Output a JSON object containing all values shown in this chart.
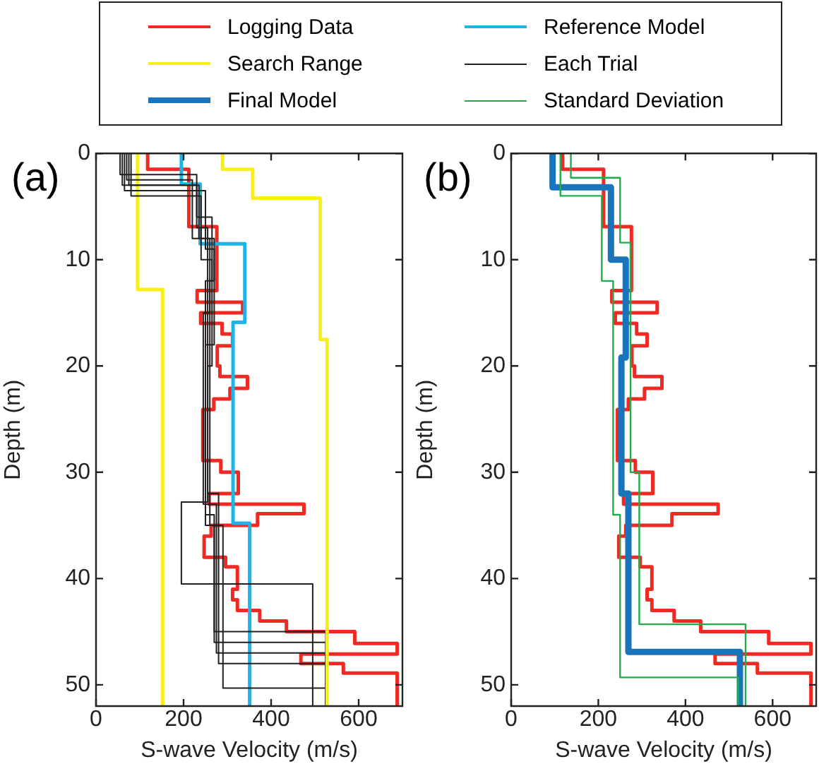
{
  "chart_data": [
    {
      "type": "line",
      "xlabel": "S-wave Velocity (m/s)",
      "ylabel": "Depth (m)",
      "annotations": [
        "(a)"
      ],
      "xlim": [
        0,
        700
      ],
      "xticks": [
        0,
        200,
        400,
        600
      ],
      "ylim": [
        52,
        0
      ],
      "yticks": [
        0,
        10,
        20,
        30,
        40,
        50
      ],
      "grid": false,
      "legend": "top",
      "marker": "none",
      "line_style": "solid",
      "series": [
        {
          "name": "Logging Data",
          "color": "#ee2a24",
          "x": [
            118,
            118,
            212,
            212,
            276,
            276,
            231,
            231,
            335,
            335,
            239,
            239,
            288,
            288,
            312,
            312,
            277,
            277,
            283,
            283,
            346,
            346,
            306,
            306,
            269,
            269,
            244,
            244,
            285,
            285,
            325,
            325,
            258,
            258,
            475,
            475,
            369,
            369,
            263,
            263,
            247,
            247,
            296,
            296,
            323,
            323,
            312,
            312,
            323,
            323,
            374,
            374,
            435,
            435,
            591,
            591,
            688,
            688,
            468,
            468,
            565,
            565,
            688,
            688
          ],
          "values": [
            0,
            1.5,
            1.5,
            6.9,
            6.9,
            12.9,
            12.9,
            14,
            14,
            15,
            15,
            16,
            16,
            17,
            17,
            18.1,
            18.1,
            20,
            20,
            21,
            21,
            22.1,
            22.1,
            23.1,
            23.1,
            24.1,
            24.1,
            28.9,
            28.9,
            30,
            30,
            32,
            32,
            33,
            33,
            33.9,
            33.9,
            35,
            35,
            36,
            36,
            38,
            38,
            38.9,
            38.9,
            41,
            41,
            42,
            42,
            43,
            43,
            44,
            44,
            45,
            45,
            46.1,
            46.1,
            47.1,
            47.1,
            48,
            48,
            48.9,
            48.9,
            52
          ]
        },
        {
          "name": "Reference Model",
          "color": "#1fb4e8",
          "x": [
            195,
            195,
            238,
            238,
            340,
            340,
            313,
            313,
            351,
            351
          ],
          "values": [
            0,
            2.9,
            2.9,
            8.5,
            8.5,
            15.9,
            15.9,
            34.8,
            34.8,
            52
          ]
        },
        {
          "name": "Search Range",
          "color": "#f7ee1a",
          "x": [
            95,
            95,
            152,
            152
          ],
          "values": [
            0,
            12.8,
            12.8,
            52
          ]
        },
        {
          "name": "Each Trial",
          "color": "#231f20",
          "x": [
            60,
            60,
            230,
            230,
            255,
            255,
            250,
            250,
            270,
            270,
            525,
            525
          ],
          "values": [
            0,
            3,
            3,
            7,
            7,
            12,
            12,
            35,
            35,
            45,
            45,
            52
          ]
        },
        {
          "color": "#231f20",
          "x": [
            70,
            70,
            220,
            220,
            260,
            260,
            245,
            245,
            275,
            275,
            525,
            525
          ],
          "values": [
            0,
            2.5,
            2.5,
            8,
            8,
            15,
            15,
            33,
            33,
            47,
            47,
            52
          ]
        },
        {
          "color": "#231f20",
          "x": [
            80,
            80,
            240,
            240,
            265,
            265,
            255,
            255,
            280,
            280,
            525,
            525
          ],
          "values": [
            0,
            4,
            4,
            10,
            10,
            20,
            20,
            32,
            32,
            48,
            48,
            52
          ]
        },
        {
          "color": "#231f20",
          "x": [
            65,
            65,
            250,
            250,
            270,
            270,
            250,
            250,
            270,
            270,
            525,
            525
          ],
          "values": [
            0,
            3.5,
            3.5,
            9,
            9,
            18,
            18,
            34,
            34,
            46,
            46,
            52
          ]
        },
        {
          "color": "#231f20",
          "x": [
            75,
            75,
            235,
            235,
            270,
            270,
            255,
            255,
            195,
            195,
            495,
            495
          ],
          "values": [
            0,
            3,
            3,
            8,
            8,
            12,
            12,
            32.8,
            32.8,
            40.5,
            40.5,
            52
          ]
        },
        {
          "color": "#231f20",
          "x": [
            55,
            55,
            230,
            230,
            265,
            265,
            260,
            260,
            290,
            290,
            525,
            525
          ],
          "values": [
            0,
            2,
            2,
            6,
            6,
            12,
            12,
            35,
            35,
            50.3,
            50.3,
            52
          ]
        },
        {
          "color": "#f7ee1a",
          "x": [
            289,
            289,
            358,
            358,
            512,
            512,
            528,
            528
          ],
          "values": [
            0,
            1.5,
            1.5,
            4.2,
            4.2,
            17.5,
            17.5,
            52
          ]
        }
      ]
    },
    {
      "type": "line",
      "xlabel": "S-wave Velocity (m/s)",
      "ylabel": "Depth (m)",
      "annotations": [
        "(b)"
      ],
      "xlim": [
        0,
        700
      ],
      "xticks": [
        0,
        200,
        400,
        600
      ],
      "ylim": [
        52,
        0
      ],
      "yticks": [
        0,
        10,
        20,
        30,
        40,
        50
      ],
      "grid": false,
      "legend": "top",
      "marker": "none",
      "line_style": "solid",
      "series": [
        {
          "color": "#ee2a24",
          "x": [
            118,
            118,
            212,
            212,
            276,
            276,
            231,
            231,
            335,
            335,
            239,
            239,
            288,
            288,
            312,
            312,
            277,
            277,
            283,
            283,
            346,
            346,
            306,
            306,
            269,
            269,
            244,
            244,
            285,
            285,
            325,
            325,
            258,
            258,
            475,
            475,
            369,
            369,
            263,
            263,
            247,
            247,
            296,
            296,
            323,
            323,
            312,
            312,
            323,
            323,
            374,
            374,
            435,
            435,
            591,
            591,
            688,
            688,
            468,
            468,
            565,
            565,
            688,
            688
          ],
          "values": [
            0,
            1.5,
            1.5,
            6.9,
            6.9,
            12.9,
            12.9,
            14,
            14,
            15,
            15,
            16,
            16,
            17,
            17,
            18.1,
            18.1,
            20,
            20,
            21,
            21,
            22.1,
            22.1,
            23.1,
            23.1,
            24.1,
            24.1,
            28.9,
            28.9,
            30,
            30,
            32,
            32,
            33,
            33,
            33.9,
            33.9,
            35,
            35,
            36,
            36,
            38,
            38,
            38.9,
            38.9,
            41,
            41,
            42,
            42,
            43,
            43,
            44,
            44,
            45,
            45,
            46.1,
            46.1,
            47.1,
            47.1,
            48,
            48,
            48.9,
            48.9,
            52
          ]
        },
        {
          "name": "Final Model",
          "color": "#1a74bb",
          "x": [
            95,
            95,
            229,
            229,
            263,
            263,
            253,
            253,
            269,
            269,
            525,
            525
          ],
          "values": [
            0,
            3.2,
            3.2,
            10,
            10,
            19.2,
            19.2,
            32,
            32,
            46.9,
            46.9,
            52
          ]
        },
        {
          "name": "Standard Deviation",
          "color": "#1fad4b",
          "x": [
            113,
            113,
            208,
            208,
            234,
            234,
            250,
            250,
            521,
            521
          ],
          "values": [
            0,
            4,
            4,
            12,
            12,
            34,
            34,
            49.3,
            49.3,
            52
          ]
        },
        {
          "color": "#1fad4b",
          "x": [
            137,
            137,
            250,
            250,
            274,
            274,
            294,
            294,
            538,
            538
          ],
          "values": [
            0,
            2.3,
            2.3,
            8.4,
            8.4,
            30,
            30,
            44.3,
            44.3,
            52
          ]
        }
      ]
    }
  ]
}
